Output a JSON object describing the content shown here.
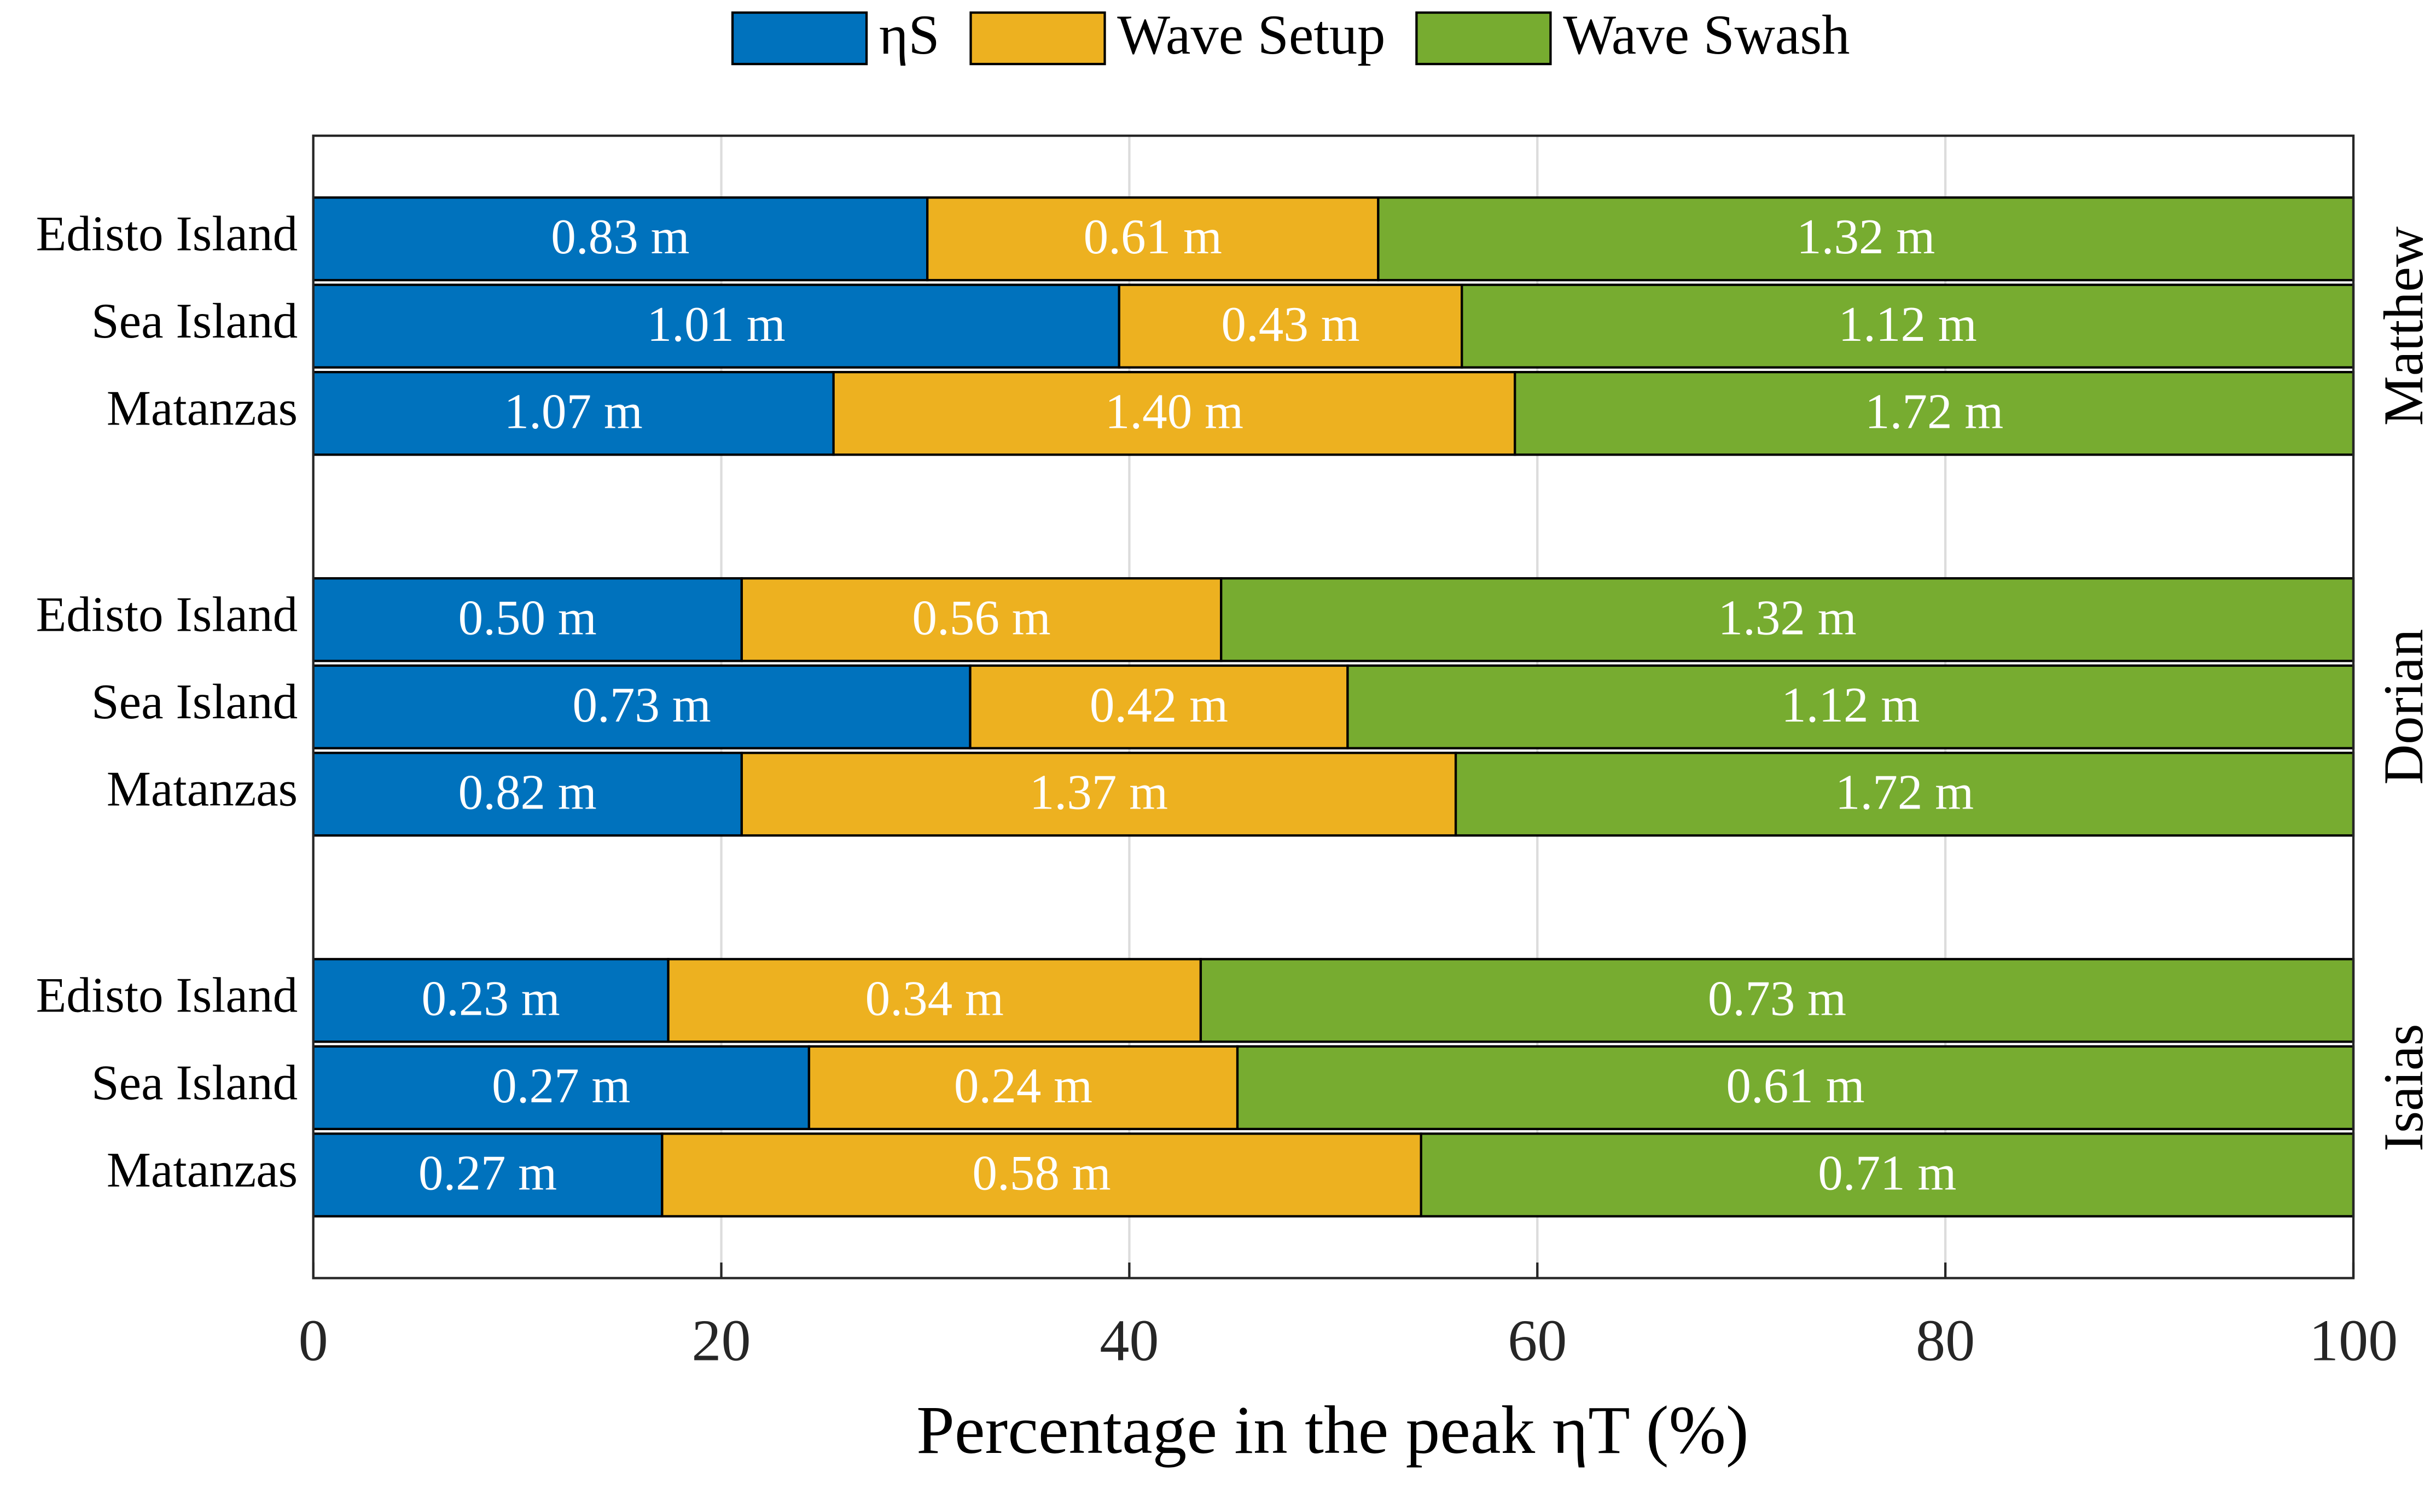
{
  "chart_data": {
    "type": "stacked_barh",
    "xlabel": "Percentage in the peak ηT (%)",
    "xlim": [
      0,
      100
    ],
    "xticks": [
      0,
      20,
      40,
      60,
      80,
      100
    ],
    "grid": true,
    "legend": "top",
    "categories": [
      "Edisto Island",
      "Sea Island",
      "Matanzas",
      "Edisto Island",
      "Sea Island",
      "Matanzas",
      "Edisto Island",
      "Sea Island",
      "Matanzas"
    ],
    "groups": [
      "Matthew",
      "Dorian",
      "Isaias"
    ],
    "series": [
      {
        "name": "ηS",
        "color": "#0072BD",
        "values": [
          30.1,
          39.5,
          25.5,
          21.0,
          32.2,
          21.0,
          17.4,
          24.3,
          17.1
        ],
        "segment_labels": [
          "0.83 m",
          "1.01 m",
          "1.07 m",
          "0.50 m",
          "0.73 m",
          "0.82 m",
          "0.23 m",
          "0.27 m",
          "0.27 m"
        ]
      },
      {
        "name": "Wave Setup",
        "color": "#EDB120",
        "values": [
          22.1,
          16.8,
          33.4,
          23.5,
          18.5,
          35.0,
          26.1,
          21.0,
          37.2
        ],
        "segment_labels": [
          "0.61 m",
          "0.43 m",
          "1.40 m",
          "0.56 m",
          "0.42 m",
          "1.37 m",
          "0.34 m",
          "0.24 m",
          "0.58 m"
        ]
      },
      {
        "name": "Wave Swash",
        "color": "#77AC30",
        "values": [
          47.8,
          43.7,
          41.1,
          55.5,
          49.3,
          44.0,
          56.5,
          54.7,
          45.7
        ],
        "segment_labels": [
          "1.32 m",
          "1.12 m",
          "1.72 m",
          "1.32 m",
          "1.12 m",
          "1.72 m",
          "0.73 m",
          "0.61 m",
          "0.71 m"
        ]
      }
    ]
  }
}
